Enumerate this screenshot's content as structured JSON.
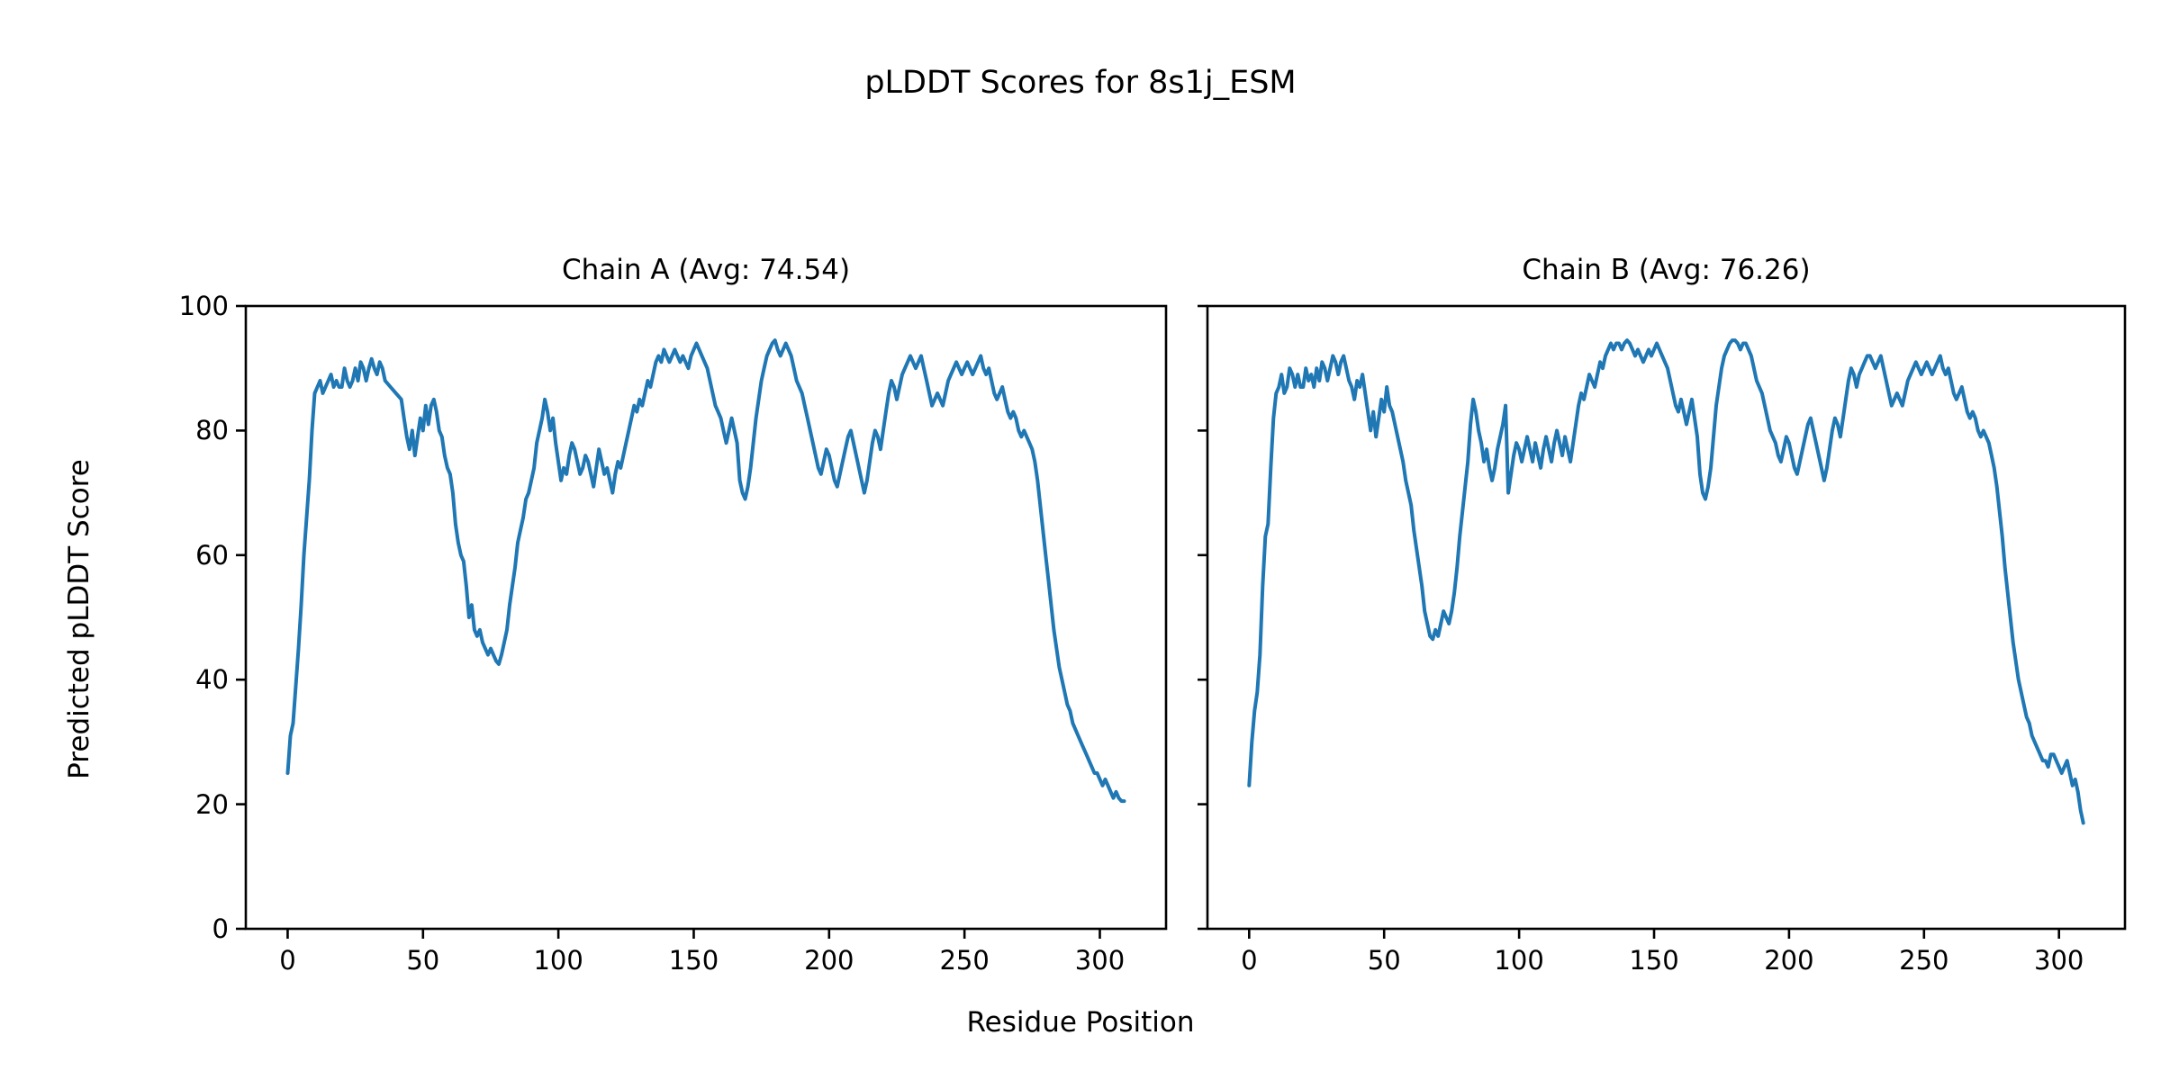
{
  "figure": {
    "title": "pLDDT Scores for 8s1j_ESM"
  },
  "chart_data": {
    "type": "line",
    "title": "pLDDT Scores for 8s1j_ESM",
    "xlabel": "Residue Position",
    "ylabel": "Predicted pLDDT Score",
    "line_color": "#1f77b4",
    "grid": false,
    "legend": "none",
    "ylim": [
      0,
      100
    ],
    "xlim": [
      -15.45,
      324.45
    ],
    "xticks": [
      0,
      50,
      100,
      150,
      200,
      250,
      300
    ],
    "yticks": [
      0,
      20,
      40,
      60,
      80,
      100
    ],
    "x_start": 0,
    "x_step": 1,
    "subplots": [
      {
        "title": "Chain A (Avg: 74.54)",
        "chain": "A",
        "avg": 74.54,
        "values": [
          25,
          31,
          33,
          39,
          45,
          52,
          60,
          66,
          72,
          80,
          86,
          87,
          88,
          86,
          87,
          88,
          89,
          87,
          88,
          87,
          87,
          90,
          88,
          87,
          88,
          90,
          88,
          91,
          90,
          88,
          90,
          91.5,
          90,
          89,
          91,
          90,
          88,
          87.5,
          87,
          86.5,
          86,
          85.5,
          85,
          82,
          79,
          77,
          80,
          76,
          79,
          82,
          80,
          84,
          81,
          84,
          85,
          83,
          80,
          79,
          76,
          74,
          73,
          70,
          65,
          62,
          60,
          59,
          55,
          50,
          52,
          48,
          47,
          48,
          46,
          45,
          44,
          45,
          44,
          43,
          42.5,
          44,
          46,
          48,
          52,
          55,
          58,
          62,
          64,
          66,
          69,
          70,
          72,
          74,
          78,
          80,
          82,
          85,
          83,
          80,
          82,
          78,
          75,
          72,
          74,
          73,
          76,
          78,
          77,
          75,
          73,
          74,
          76,
          75,
          73,
          71,
          74,
          77,
          75,
          73,
          74,
          72,
          70,
          73,
          75,
          74,
          76,
          78,
          80,
          82,
          84,
          83,
          85,
          84,
          86,
          88,
          87,
          89,
          91,
          92,
          91,
          93,
          92,
          91,
          92,
          93,
          92,
          91,
          92,
          91,
          90,
          92,
          93,
          94,
          93,
          92,
          91,
          90,
          88,
          86,
          84,
          83,
          82,
          80,
          78,
          80,
          82,
          80,
          78,
          72,
          70,
          69,
          71,
          74,
          78,
          82,
          85,
          88,
          90,
          92,
          93,
          94,
          94.5,
          93,
          92,
          93,
          94,
          93,
          92,
          90,
          88,
          87,
          86,
          84,
          82,
          80,
          78,
          76,
          74,
          73,
          75,
          77,
          76,
          74,
          72,
          71,
          73,
          75,
          77,
          79,
          80,
          78,
          76,
          74,
          72,
          70,
          72,
          75,
          78,
          80,
          79,
          77,
          80,
          83,
          86,
          88,
          87,
          85,
          87,
          89,
          90,
          91,
          92,
          91,
          90,
          91,
          92,
          90,
          88,
          86,
          84,
          85,
          86,
          85,
          84,
          86,
          88,
          89,
          90,
          91,
          90,
          89,
          90,
          91,
          90,
          89,
          90,
          91,
          92,
          90,
          89,
          90,
          88,
          86,
          85,
          86,
          87,
          85,
          83,
          82,
          83,
          82,
          80,
          79,
          80,
          79,
          78,
          77,
          75,
          72,
          68,
          64,
          60,
          56,
          52,
          48,
          45,
          42,
          40,
          38,
          36,
          35,
          33,
          32,
          31,
          30,
          29,
          28,
          27,
          26,
          25,
          25,
          24,
          23,
          24,
          23,
          22,
          21,
          22,
          21,
          20.5,
          20.5
        ]
      },
      {
        "title": "Chain B (Avg: 76.26)",
        "chain": "B",
        "avg": 76.26,
        "values": [
          23,
          30,
          35,
          38,
          44,
          55,
          63,
          65,
          74,
          82,
          86,
          87,
          89,
          86,
          87,
          90,
          89,
          87,
          89,
          87,
          87,
          90,
          88,
          89,
          87,
          90,
          88,
          91,
          90,
          88,
          90,
          92,
          91,
          89,
          91,
          92,
          90,
          88,
          87,
          85,
          88,
          87,
          89,
          86,
          83,
          80,
          83,
          79,
          82,
          85,
          83,
          87,
          84,
          83,
          81,
          79,
          77,
          75,
          72,
          70,
          68,
          64,
          61,
          58,
          55,
          51,
          49,
          47,
          46.5,
          48,
          47,
          49,
          51,
          50,
          49,
          51,
          54,
          58,
          63,
          67,
          71,
          75,
          81,
          85,
          83,
          80,
          78,
          75,
          77,
          74,
          72,
          74,
          77,
          79,
          81,
          84,
          70,
          73,
          76,
          78,
          77,
          75,
          77,
          79,
          77,
          75,
          78,
          76,
          74,
          77,
          79,
          77,
          75,
          78,
          80,
          78,
          76,
          79,
          77,
          75,
          78,
          81,
          84,
          86,
          85,
          87,
          89,
          88,
          87,
          89,
          91,
          90,
          92,
          93,
          94,
          93,
          94,
          94,
          93,
          94,
          94.5,
          94,
          93,
          92,
          93,
          92,
          91,
          92,
          93,
          92,
          93,
          94,
          93,
          92,
          91,
          90,
          88,
          86,
          84,
          83,
          85,
          83,
          81,
          83,
          85,
          82,
          79,
          73,
          70,
          69,
          71,
          74,
          79,
          84,
          87,
          90,
          92,
          93,
          94,
          94.5,
          94.5,
          94,
          93,
          94,
          94,
          93,
          92,
          90,
          88,
          87,
          86,
          84,
          82,
          80,
          79,
          78,
          76,
          75,
          77,
          79,
          78,
          76,
          74,
          73,
          75,
          77,
          79,
          81,
          82,
          80,
          78,
          76,
          74,
          72,
          74,
          77,
          80,
          82,
          81,
          79,
          82,
          85,
          88,
          90,
          89,
          87,
          89,
          90,
          91,
          92,
          92,
          91,
          90,
          91,
          92,
          90,
          88,
          86,
          84,
          85,
          86,
          85,
          84,
          86,
          88,
          89,
          90,
          91,
          90,
          89,
          90,
          91,
          90,
          89,
          90,
          91,
          92,
          90,
          89,
          90,
          88,
          86,
          85,
          86,
          87,
          85,
          83,
          82,
          83,
          82,
          80,
          79,
          80,
          79,
          78,
          76,
          74,
          71,
          67,
          63,
          58,
          54,
          50,
          46,
          43,
          40,
          38,
          36,
          34,
          33,
          31,
          30,
          29,
          28,
          27,
          27,
          26,
          28,
          28,
          27,
          26,
          25,
          26,
          27,
          25,
          23,
          24,
          22,
          19,
          17
        ]
      }
    ]
  }
}
